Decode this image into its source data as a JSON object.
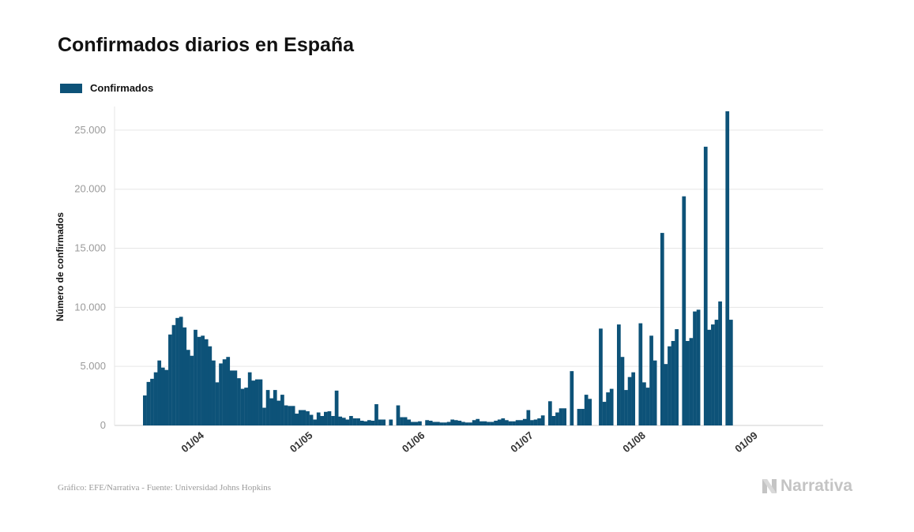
{
  "header": {
    "title": "Confirmados diarios en España"
  },
  "legend": {
    "label": "Confirmados"
  },
  "footer": {
    "source": "Gráfico: EFE/Narrativa - Fuente: Universidad Johns Hopkins"
  },
  "brand": {
    "name": "Narrativa",
    "icon": "narrativa-logo-icon"
  },
  "colors": {
    "bar": "#0d5278",
    "grid": "#e6e6e6",
    "axis": "#cfcfcf"
  },
  "chart_data": {
    "type": "bar",
    "title": "Confirmados diarios en España",
    "ylabel": "Número de confirmados",
    "xlabel": "",
    "ylim": [
      0,
      27000
    ],
    "yticks": [
      0,
      5000,
      10000,
      15000,
      20000,
      25000
    ],
    "ytick_labels": [
      "0",
      "5.000",
      "10.000",
      "15.000",
      "20.000",
      "25.000"
    ],
    "xtick_labels": [
      "01/04",
      "01/05",
      "01/06",
      "01/07",
      "01/08",
      "01/09"
    ],
    "xtick_dates": [
      "2020-04-01",
      "2020-05-01",
      "2020-06-01",
      "2020-07-01",
      "2020-08-01",
      "2020-09-01"
    ],
    "grid": true,
    "legend_position": "top-left",
    "series": [
      {
        "name": "Confirmados",
        "start_date": "2020-03-18",
        "values": [
          2538,
          3683,
          3950,
          4500,
          5500,
          4900,
          4700,
          7700,
          8500,
          9100,
          9200,
          8300,
          6400,
          5900,
          8100,
          7500,
          7600,
          7300,
          6700,
          5500,
          3650,
          5250,
          5600,
          5800,
          4650,
          4650,
          4000,
          3100,
          3200,
          4500,
          3800,
          3900,
          3900,
          1500,
          3000,
          2300,
          3000,
          2100,
          2600,
          1700,
          1650,
          1650,
          1000,
          1300,
          1300,
          1200,
          900,
          500,
          1100,
          800,
          1150,
          1200,
          800,
          2950,
          750,
          650,
          500,
          800,
          600,
          600,
          400,
          350,
          450,
          400,
          1800,
          500,
          500,
          0,
          500,
          0,
          1700,
          700,
          700,
          500,
          300,
          300,
          350,
          0,
          450,
          400,
          300,
          300,
          250,
          250,
          300,
          500,
          450,
          400,
          300,
          250,
          250,
          450,
          550,
          350,
          350,
          300,
          300,
          400,
          500,
          600,
          450,
          350,
          350,
          450,
          450,
          550,
          1300,
          450,
          500,
          600,
          850,
          0,
          2050,
          800,
          1100,
          1450,
          1450,
          0,
          4600,
          0,
          1400,
          1400,
          2600,
          2250,
          0,
          0,
          8200,
          2000,
          2800,
          3100,
          0,
          8550,
          5800,
          3000,
          4100,
          4500,
          0,
          8650,
          3650,
          3200,
          7600,
          5500,
          0,
          16300,
          5200,
          6700,
          7150,
          8150,
          0,
          19400,
          7150,
          7400,
          9650,
          9800,
          0,
          23600,
          8100,
          8550,
          8950,
          10500,
          0,
          26600,
          8950
        ]
      }
    ]
  }
}
